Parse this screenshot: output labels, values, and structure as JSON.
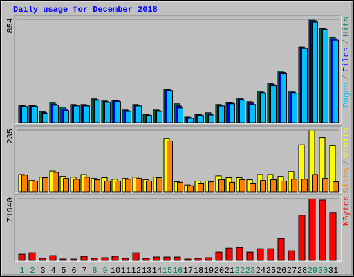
{
  "chart_data": {
    "type": "bar",
    "title": "Daily usage for December 2018",
    "categories": [
      "1",
      "2",
      "3",
      "4",
      "5",
      "6",
      "7",
      "8",
      "9",
      "10",
      "11",
      "12",
      "13",
      "14",
      "15",
      "16",
      "17",
      "18",
      "19",
      "20",
      "21",
      "22",
      "23",
      "24",
      "25",
      "26",
      "27",
      "28",
      "29",
      "30",
      "31"
    ],
    "category_colors": [
      "#00805c",
      "#00805c",
      "#000000",
      "#000000",
      "#000000",
      "#000000",
      "#000000",
      "#00805c",
      "#00805c",
      "#000000",
      "#000000",
      "#000000",
      "#000000",
      "#000000",
      "#00805c",
      "#00805c",
      "#000000",
      "#000000",
      "#000000",
      "#000000",
      "#000000",
      "#00805c",
      "#00805c",
      "#000000",
      "#000000",
      "#000000",
      "#000000",
      "#000000",
      "#00805c",
      "#00805c",
      "#000000"
    ],
    "legend_separator": "/",
    "panels": [
      {
        "ylim": [
          0,
          854
        ],
        "yticks": [
          854
        ],
        "series": [
          {
            "name": "Hits",
            "color": "#00805c",
            "values": [
              144,
              144,
              92,
              162,
              127,
              150,
              150,
              196,
              179,
              185,
              104,
              150,
              69,
              104,
              277,
              156,
              46,
              69,
              81,
              150,
              167,
              202,
              173,
              260,
              323,
              427,
              260,
              624,
              854,
              779,
              704
            ]
          },
          {
            "name": "Files",
            "color": "#0000ff",
            "values": [
              138,
              138,
              84,
              153,
              112,
              144,
              144,
              190,
              173,
              179,
              98,
              144,
              63,
              98,
              271,
              138,
              40,
              63,
              72,
              144,
              161,
              194,
              162,
              251,
              315,
              416,
              251,
              618,
              843,
              773,
              692
            ]
          },
          {
            "name": "Pages",
            "color": "#00c0ff",
            "values": [
              133,
              133,
              75,
              144,
              98,
              138,
              138,
              185,
              167,
              173,
              92,
              138,
              58,
              92,
              265,
              121,
              35,
              58,
              63,
              138,
              156,
              185,
              150,
              242,
              306,
              404,
              242,
              612,
              831,
              768,
              681
            ]
          }
        ],
        "legend_order": [
          2,
          1,
          0
        ]
      },
      {
        "ylim": [
          0,
          235
        ],
        "yticks": [
          235
        ],
        "series": [
          {
            "name": "Visits",
            "color": "#ffff00",
            "values": [
              66,
              43,
              56,
              79,
              59,
              56,
              66,
              51,
              54,
              48,
              51,
              56,
              46,
              56,
              204,
              38,
              26,
              41,
              41,
              61,
              54,
              54,
              46,
              66,
              66,
              59,
              77,
              179,
              235,
              207,
              176
            ]
          },
          {
            "name": "Sites",
            "color": "#ff8000",
            "values": [
              64,
              41,
              54,
              74,
              51,
              48,
              56,
              46,
              41,
              41,
              48,
              51,
              41,
              54,
              194,
              36,
              23,
              33,
              38,
              46,
              36,
              46,
              33,
              43,
              46,
              41,
              48,
              48,
              66,
              51,
              38
            ]
          }
        ],
        "legend_order": [
          1,
          0
        ]
      },
      {
        "ylim": [
          0,
          71940
        ],
        "yticks": [
          71940
        ],
        "series": [
          {
            "name": "KBytes",
            "color": "#ff0000",
            "values": [
              7190,
              8790,
              2400,
              5590,
              1600,
              1600,
              4800,
              2400,
              3200,
              4800,
              2400,
              8790,
              2400,
              4000,
              4000,
              4000,
              1600,
              2400,
              3200,
              9590,
              14380,
              15180,
              9590,
              13580,
              13580,
              25570,
              11190,
              52730,
              71940,
              70340,
              55930
            ]
          }
        ],
        "legend_order": [
          0
        ]
      }
    ]
  }
}
